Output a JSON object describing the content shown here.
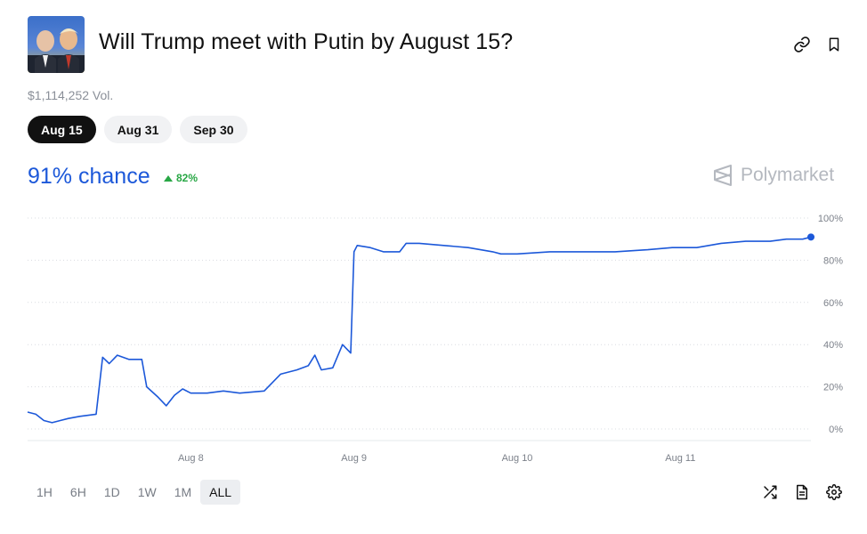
{
  "header": {
    "title": "Will Trump meet with Putin by August 15?",
    "volume": "$1,114,252 Vol."
  },
  "date_tabs": [
    {
      "label": "Aug 15",
      "active": true
    },
    {
      "label": "Aug 31",
      "active": false
    },
    {
      "label": "Sep 30",
      "active": false
    }
  ],
  "summary": {
    "chance": "91% chance",
    "change": "82%",
    "brand": "Polymarket"
  },
  "range_tabs": [
    {
      "label": "1H",
      "active": false
    },
    {
      "label": "6H",
      "active": false
    },
    {
      "label": "1D",
      "active": false
    },
    {
      "label": "1W",
      "active": false
    },
    {
      "label": "1M",
      "active": false
    },
    {
      "label": "ALL",
      "active": true
    }
  ],
  "icons": {
    "link": "link-icon",
    "bookmark": "bookmark-icon",
    "shuffle": "shuffle-icon",
    "document": "document-icon",
    "gear": "gear-icon"
  },
  "colors": {
    "accent": "#1c58d9",
    "positive": "#28a745"
  },
  "chart_data": {
    "type": "line",
    "ylim": [
      0,
      100
    ],
    "y_ticks": [
      "100%",
      "80%",
      "60%",
      "40%",
      "20%",
      "0%"
    ],
    "x_ticks": [
      {
        "label": "Aug 8",
        "t": 8
      },
      {
        "label": "Aug 9",
        "t": 9
      },
      {
        "label": "Aug 10",
        "t": 10
      },
      {
        "label": "Aug 11",
        "t": 11
      }
    ],
    "xlim": [
      7.0,
      11.8
    ],
    "grid": true,
    "series": [
      {
        "points": [
          [
            7.0,
            8
          ],
          [
            7.05,
            7
          ],
          [
            7.1,
            4
          ],
          [
            7.15,
            3
          ],
          [
            7.2,
            4
          ],
          [
            7.25,
            5
          ],
          [
            7.32,
            6
          ],
          [
            7.42,
            7
          ],
          [
            7.46,
            34
          ],
          [
            7.5,
            31
          ],
          [
            7.55,
            35
          ],
          [
            7.62,
            33
          ],
          [
            7.7,
            33
          ],
          [
            7.73,
            20
          ],
          [
            7.8,
            15
          ],
          [
            7.85,
            11
          ],
          [
            7.9,
            16
          ],
          [
            7.95,
            19
          ],
          [
            8.0,
            17
          ],
          [
            8.1,
            17
          ],
          [
            8.2,
            18
          ],
          [
            8.3,
            17
          ],
          [
            8.45,
            18
          ],
          [
            8.55,
            26
          ],
          [
            8.65,
            28
          ],
          [
            8.72,
            30
          ],
          [
            8.76,
            35
          ],
          [
            8.8,
            28
          ],
          [
            8.87,
            29
          ],
          [
            8.93,
            40
          ],
          [
            8.98,
            36
          ],
          [
            9.0,
            84
          ],
          [
            9.02,
            87
          ],
          [
            9.1,
            86
          ],
          [
            9.18,
            84
          ],
          [
            9.28,
            84
          ],
          [
            9.32,
            88
          ],
          [
            9.4,
            88
          ],
          [
            9.55,
            87
          ],
          [
            9.7,
            86
          ],
          [
            9.85,
            84
          ],
          [
            9.9,
            83
          ],
          [
            10.0,
            83
          ],
          [
            10.2,
            84
          ],
          [
            10.4,
            84
          ],
          [
            10.6,
            84
          ],
          [
            10.8,
            85
          ],
          [
            10.95,
            86
          ],
          [
            11.1,
            86
          ],
          [
            11.25,
            88
          ],
          [
            11.4,
            89
          ],
          [
            11.55,
            89
          ],
          [
            11.65,
            90
          ],
          [
            11.75,
            90
          ],
          [
            11.8,
            91
          ]
        ]
      }
    ]
  }
}
